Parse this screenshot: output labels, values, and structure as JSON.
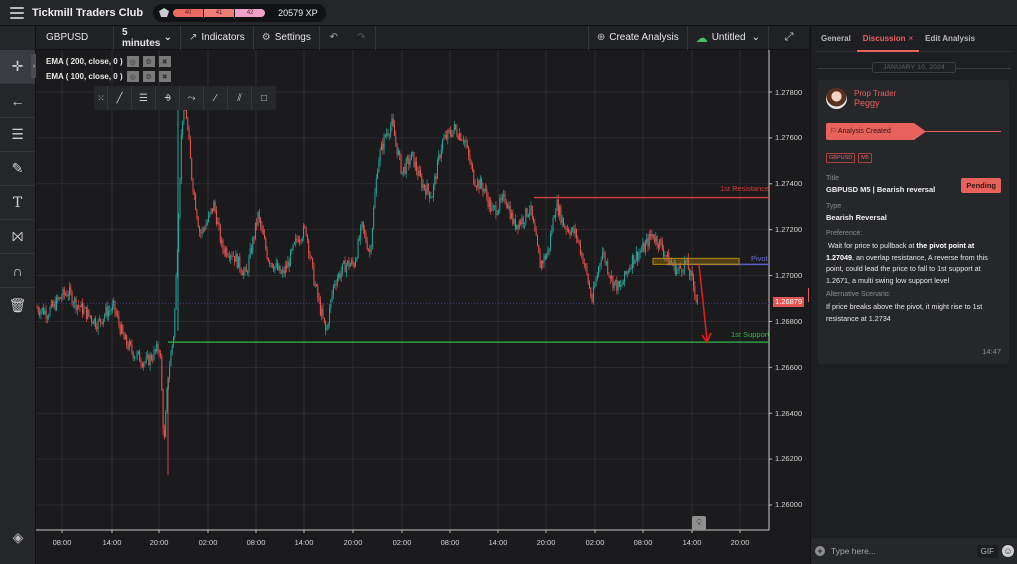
{
  "topbar": {
    "app_title": "Tickmill Traders Club",
    "xp_levels": [
      "40",
      "41",
      "42"
    ],
    "xp_total": "20579 XP"
  },
  "toolbar": {
    "symbol": "GBPUSD",
    "interval": "5 minutes",
    "indicators_label": "Indicators",
    "settings_label": "Settings",
    "create_analysis_label": "Create Analysis",
    "layout_name": "Untitled"
  },
  "left_tools": [
    "crosshair",
    "horizontal-line",
    "fib-levels",
    "brush",
    "text",
    "pattern",
    "magnet",
    "trash"
  ],
  "chart": {
    "indicators": [
      {
        "label": "EMA ( 200, close, 0 )"
      },
      {
        "label": "EMA ( 100, close, 0 )"
      }
    ],
    "price_ticks": [
      "1.27800",
      "1.27600",
      "1.27400",
      "1.27200",
      "1.27000",
      "1.26800",
      "1.26600",
      "1.26400",
      "1.26200",
      "1.26000"
    ],
    "time_ticks": [
      "08:00",
      "14:00",
      "20:00",
      "02:00",
      "08:00",
      "14:00",
      "20:00",
      "02:00",
      "08:00",
      "14:00",
      "20:00",
      "02:00",
      "08:00",
      "14:00",
      "20:00"
    ],
    "last_price": "1.26879",
    "levels": {
      "resistance": {
        "label": "1st Resistance",
        "price": 1.2734,
        "color": "#d23c3c"
      },
      "pivot": {
        "label": "Pivot",
        "price": 1.27049,
        "color": "#5b5fc7"
      },
      "support": {
        "label": "1st Support",
        "price": 1.2671,
        "color": "#2fb84a"
      }
    },
    "colors": {
      "up": "#26a69a",
      "down": "#ef5350",
      "zone": "#b8860b",
      "arrow": "#e52020"
    }
  },
  "right_panel": {
    "tabs": [
      {
        "label": "General",
        "active": false
      },
      {
        "label": "Discussion",
        "active": true
      },
      {
        "label": "Edit Analysis",
        "active": false
      }
    ],
    "date": "JANUARY 10, 2024",
    "author_role": "Prop Trader",
    "author_name": "Peggy",
    "status_banner": "Analysis Created",
    "chips": [
      "GBPUSD",
      "M5"
    ],
    "status": "Pending",
    "title_label": "Title",
    "title_value": "GBPUSD M5 | Bearish reversal",
    "type_label": "Type",
    "type_value": "Bearish Reversal",
    "preference_label": "Preference:",
    "preference_pre": "Wait for price to pullback at ",
    "preference_bold": "the pivot point at 1.27049",
    "preference_post": ", an overlap resistance, A reverse from this point, could lead the price to fall to 1st support at 1.2671, a multi swing low support level",
    "alt_label": "Alternative Scenario:",
    "alt_text": "If price breaks above the pivot, it might rise to 1st resistance at 1.2734",
    "time": "14:47",
    "composer_placeholder": "Type here...",
    "gif_label": "GIF"
  }
}
